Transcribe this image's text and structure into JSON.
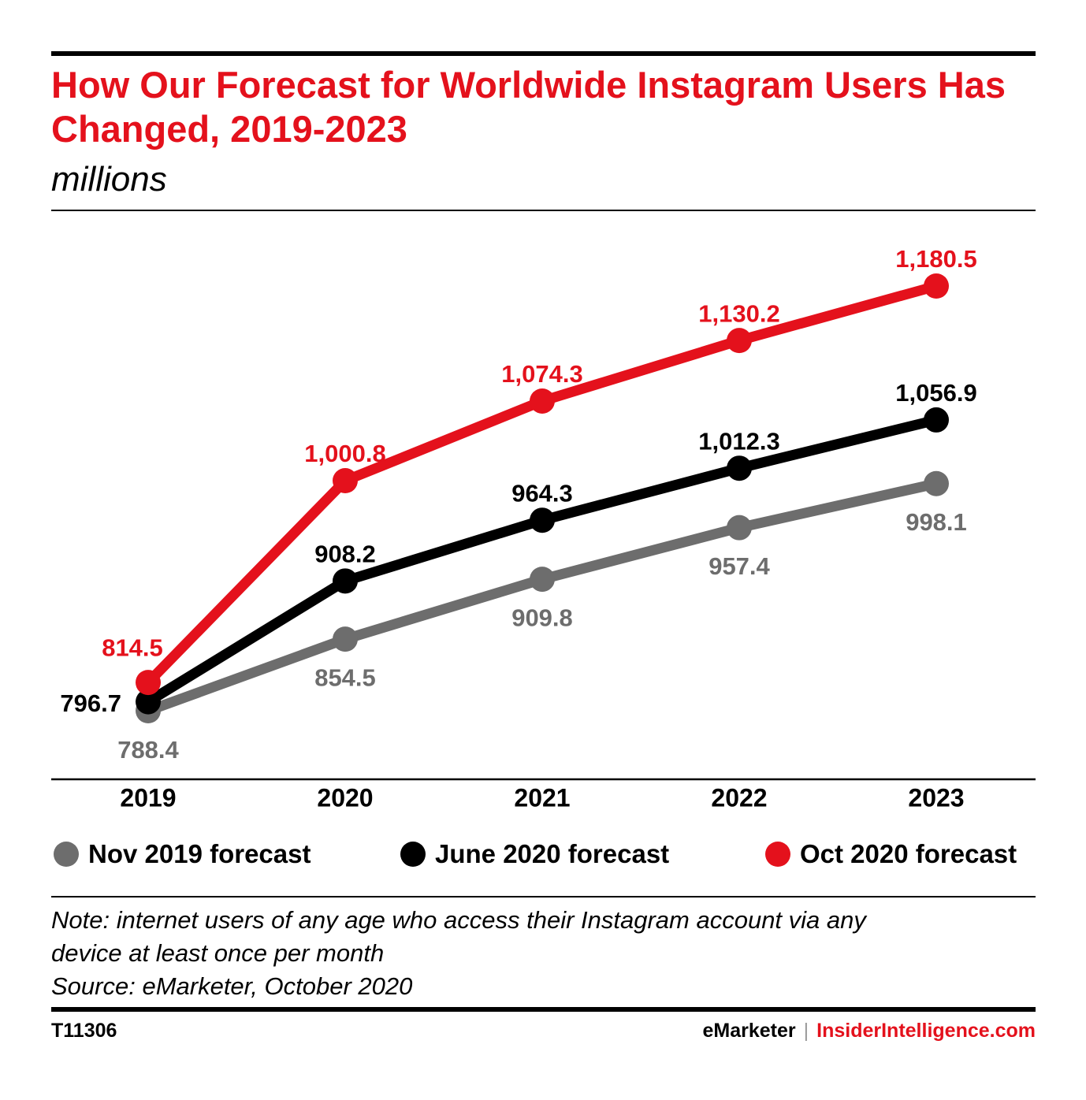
{
  "header": {
    "title": "How Our Forecast for Worldwide Instagram Users Has Changed, 2019-2023",
    "subtitle": "millions"
  },
  "chart_data": {
    "type": "line",
    "title": "How Our Forecast for Worldwide Instagram Users Has Changed, 2019-2023",
    "subtitle": "millions",
    "x": [
      "2019",
      "2020",
      "2021",
      "2022",
      "2023"
    ],
    "series": [
      {
        "name": "Nov 2019 forecast",
        "color": "#6d6d6d",
        "values": [
          788.4,
          854.5,
          909.8,
          957.4,
          998.1
        ],
        "labels": [
          "788.4",
          "854.5",
          "909.8",
          "957.4",
          "998.1"
        ]
      },
      {
        "name": "June 2020 forecast",
        "color": "#000000",
        "values": [
          796.7,
          908.2,
          964.3,
          1012.3,
          1056.9
        ],
        "labels": [
          "796.7",
          "908.2",
          "964.3",
          "1,012.3",
          "1,056.9"
        ]
      },
      {
        "name": "Oct 2020 forecast",
        "color": "#e4111c",
        "values": [
          814.5,
          1000.8,
          1074.3,
          1130.2,
          1180.5
        ],
        "labels": [
          "814.5",
          "1,000.8",
          "1,074.3",
          "1,130.2",
          "1,180.5"
        ]
      }
    ],
    "grid": false,
    "legend": "bottom"
  },
  "footer": {
    "note": "Note: internet users of any age who access their Instagram account via any",
    "note2": "device at least once per month",
    "source": "Source: eMarketer, October 2020",
    "chart_id": "T11306",
    "brand_a": "eMarketer",
    "separator": "|",
    "brand_b": "InsiderIntelligence.com"
  }
}
